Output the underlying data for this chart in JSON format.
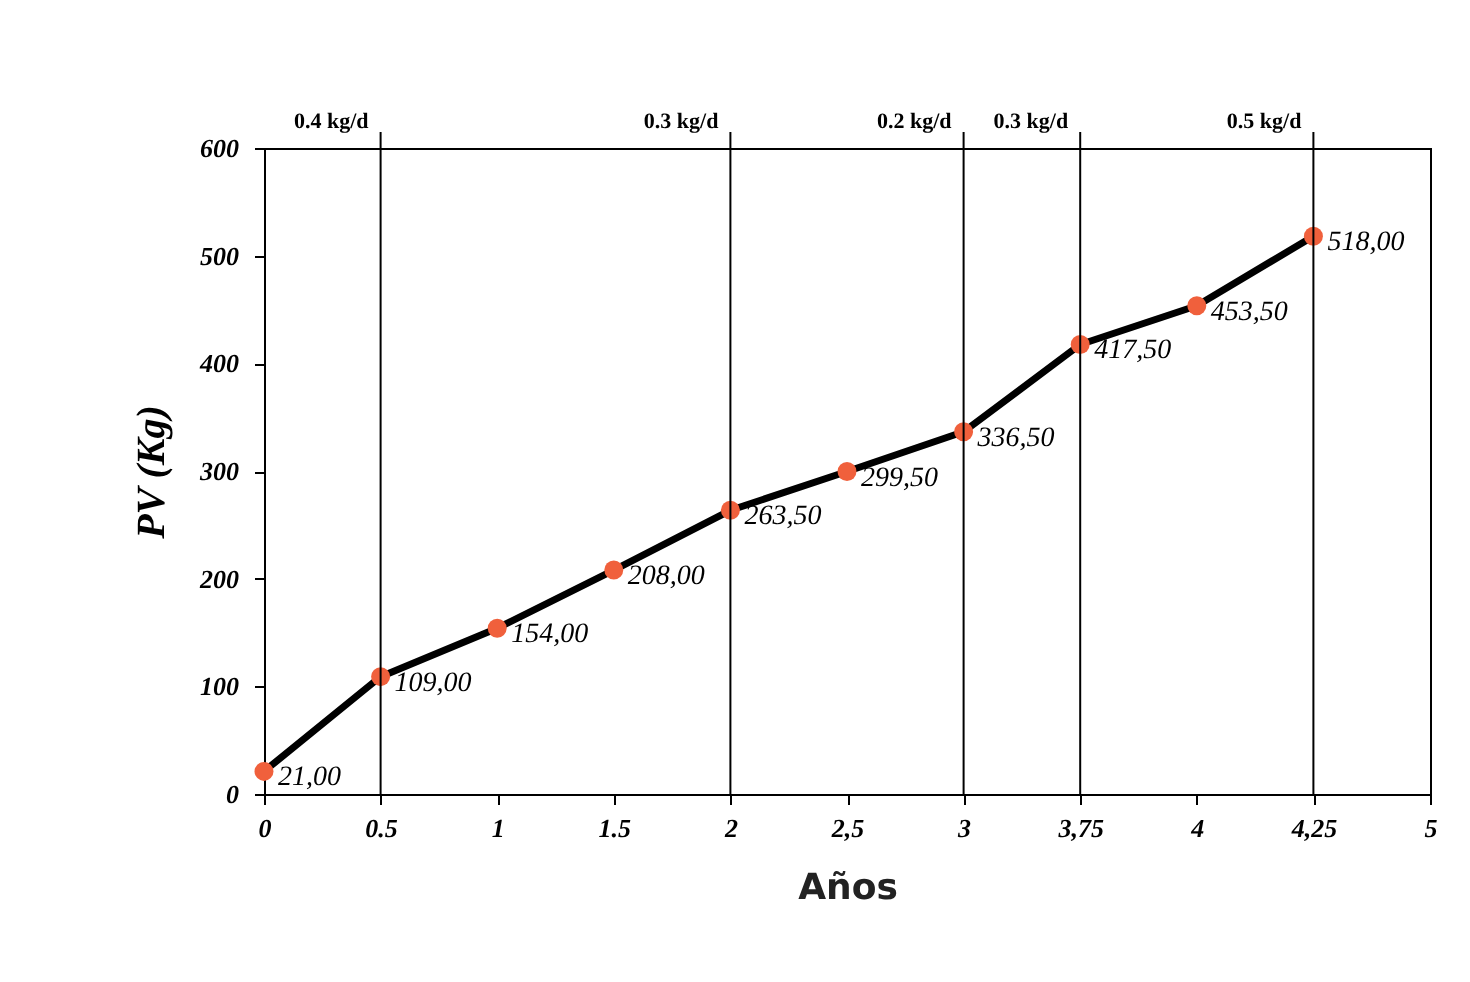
{
  "chart_data": {
    "type": "line",
    "xlabel": "Años",
    "ylabel": "PV (Kg)",
    "categories": [
      "0",
      "0.5",
      "1",
      "1.5",
      "2",
      "2,5",
      "3",
      "3,75",
      "4",
      "4,25",
      "5"
    ],
    "series": [
      {
        "color": "#000000",
        "colors": [
          "#f0603c",
          "#f0603c",
          "#f0603c",
          "#f0603c",
          "#f0603c",
          "#f0603c",
          "#f0603c",
          "#f0603c",
          "#f0603c",
          "#f0603c",
          null
        ],
        "values": [
          21,
          109,
          154,
          208,
          263.5,
          299.5,
          336.5,
          417.5,
          453.5,
          518,
          null
        ],
        "value_labels": [
          "21,00",
          "109,00",
          "154,00",
          "208,00",
          "263,50",
          "299,50",
          "336,50",
          "417,50",
          "453,50",
          "518,00",
          null
        ]
      }
    ],
    "ylim": [
      0,
      600
    ],
    "yticks": [
      0,
      100,
      200,
      300,
      400,
      500,
      600
    ],
    "grid": false,
    "marker": "circle",
    "line_style": "solid",
    "ref_lines": [
      {
        "axis": "x",
        "value": "0.5",
        "label": "0.4 kg/d"
      },
      {
        "axis": "x",
        "value": "2",
        "label": "0.3 kg/d"
      },
      {
        "axis": "x",
        "value": "3",
        "label": "0.2 kg/d"
      },
      {
        "axis": "x",
        "value": "3,75",
        "label": "0.3 kg/d"
      },
      {
        "axis": "x",
        "value": "4,25",
        "label": "0.5 kg/d"
      }
    ]
  }
}
